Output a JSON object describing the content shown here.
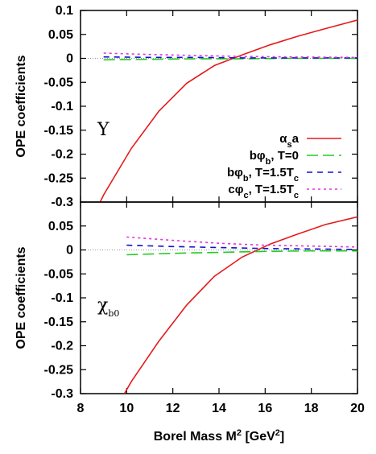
{
  "chart_data": {
    "type": "line",
    "xlabel": "Borel Mass M² [GeV²]",
    "x_ticks": [
      "8",
      "10",
      "12",
      "14",
      "16",
      "18",
      "20"
    ],
    "xlim": [
      8,
      20
    ],
    "legend_position": "bottom-right of top panel",
    "panels": [
      {
        "label": "Υ",
        "ylabel": "OPE coefficients",
        "ylim": [
          -0.3,
          0.1
        ],
        "y_ticks": [
          "0.1",
          "0.05",
          "0",
          "-0.05",
          "-0.1",
          "-0.15",
          "-0.2",
          "-0.25",
          "-0.3"
        ],
        "zero_line": true,
        "legend": [
          {
            "name": "αsa",
            "display": [
              "α",
              "s",
              "a"
            ]
          },
          {
            "name": "bφb, T=0",
            "display": [
              "bφ",
              "b",
              ", T=0"
            ]
          },
          {
            "name": "bφb, T=1.5Tc",
            "display": [
              "bφ",
              "b",
              ", T=1.5T",
              "c"
            ]
          },
          {
            "name": "cφc, T=1.5Tc",
            "display": [
              "cφ",
              "c",
              ", T=1.5T",
              "c"
            ]
          }
        ],
        "series": [
          {
            "name": "αsa",
            "color": "#e41a1c",
            "dash": "solid",
            "x": [
              8.85,
              9,
              10.2,
              11.4,
              12.6,
              13.8,
              15,
              16.2,
              17.4,
              18.6,
              20
            ],
            "y": [
              -0.3,
              -0.285,
              -0.188,
              -0.11,
              -0.052,
              -0.015,
              0.007,
              0.028,
              0.046,
              0.062,
              0.08
            ]
          },
          {
            "name": "bφb, T=0",
            "color": "#22cc22",
            "dash": "long",
            "x": [
              9,
              11,
              13,
              15,
              17,
              20
            ],
            "y": [
              -0.003,
              -0.002,
              -0.001,
              -0.001,
              0.0,
              0.0
            ]
          },
          {
            "name": "bφb, T=1.5Tc",
            "color": "#1111cc",
            "dash": "short",
            "x": [
              9,
              11,
              13,
              15,
              17,
              20
            ],
            "y": [
              0.003,
              0.002,
              0.002,
              0.001,
              0.001,
              0.001
            ]
          },
          {
            "name": "cφc, T=1.5Tc",
            "color": "#e033e0",
            "dash": "dot",
            "x": [
              9,
              11,
              13,
              15,
              17,
              20
            ],
            "y": [
              0.011,
              0.008,
              0.006,
              0.004,
              0.003,
              0.002
            ]
          }
        ]
      },
      {
        "label": "χb0",
        "label_display": [
          "χ",
          "b0"
        ],
        "ylabel": "OPE coefficients",
        "ylim": [
          -0.3,
          0.1
        ],
        "y_ticks": [
          "0.05",
          "0",
          "-0.05",
          "-0.1",
          "-0.15",
          "-0.2",
          "-0.25",
          "-0.3"
        ],
        "zero_line": true,
        "series": [
          {
            "name": "αsa",
            "color": "#e41a1c",
            "dash": "solid",
            "x": [
              9.9,
              10.2,
              11.4,
              12.6,
              13.8,
              15,
              16.2,
              17.4,
              18.6,
              20
            ],
            "y": [
              -0.3,
              -0.275,
              -0.19,
              -0.115,
              -0.055,
              -0.015,
              0.012,
              0.033,
              0.053,
              0.069
            ]
          },
          {
            "name": "bφb, T=0",
            "color": "#22cc22",
            "dash": "long",
            "x": [
              10,
              12,
              14,
              16,
              18,
              20
            ],
            "y": [
              -0.01,
              -0.007,
              -0.005,
              -0.003,
              -0.002,
              -0.002
            ]
          },
          {
            "name": "bφb, T=1.5Tc",
            "color": "#1111cc",
            "dash": "short",
            "x": [
              10,
              12,
              14,
              16,
              18,
              20
            ],
            "y": [
              0.01,
              0.007,
              0.005,
              0.003,
              0.002,
              0.001
            ]
          },
          {
            "name": "cφc, T=1.5Tc",
            "color": "#e033e0",
            "dash": "dot",
            "x": [
              10,
              12,
              14,
              16,
              18,
              20
            ],
            "y": [
              0.027,
              0.02,
              0.014,
              0.01,
              0.008,
              0.006
            ]
          }
        ]
      }
    ]
  }
}
